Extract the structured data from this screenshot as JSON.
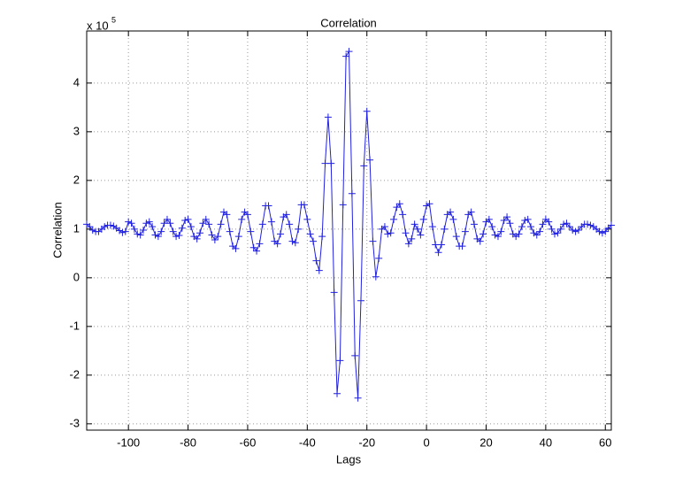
{
  "chart_data": {
    "type": "line",
    "title": "Correlation",
    "x_label": "Lags",
    "y_label": "Correlation",
    "y_multiplier": "x 10",
    "y_multiplier_exponent": "5",
    "xlim": [
      -114,
      62
    ],
    "ylim": [
      -3.13,
      5.07
    ],
    "xticks": [
      -100,
      -80,
      -60,
      -40,
      -20,
      0,
      20,
      40,
      60
    ],
    "yticks": [
      -3,
      -2,
      -1,
      0,
      1,
      2,
      3,
      4
    ],
    "grid": true,
    "x": [
      -114,
      -113,
      -112,
      -111,
      -110,
      -109,
      -108,
      -107,
      -106,
      -105,
      -104,
      -103,
      -102,
      -101,
      -100,
      -99,
      -98,
      -97,
      -96,
      -95,
      -94,
      -93,
      -92,
      -91,
      -90,
      -89,
      -88,
      -87,
      -86,
      -85,
      -84,
      -83,
      -82,
      -81,
      -80,
      -79,
      -78,
      -77,
      -76,
      -75,
      -74,
      -73,
      -72,
      -71,
      -70,
      -69,
      -68,
      -67,
      -66,
      -65,
      -64,
      -63,
      -62,
      -61,
      -60,
      -59,
      -58,
      -57,
      -56,
      -55,
      -54,
      -53,
      -52,
      -51,
      -50,
      -49,
      -48,
      -47,
      -46,
      -45,
      -44,
      -43,
      -42,
      -41,
      -40,
      -39,
      -38,
      -37,
      -36,
      -35,
      -34,
      -33,
      -32,
      -31,
      -30,
      -29,
      -28,
      -27,
      -26,
      -25,
      -24,
      -23,
      -22,
      -21,
      -20,
      -19,
      -18,
      -17,
      -16,
      -15,
      -14,
      -13,
      -12,
      -11,
      -10,
      -9,
      -8,
      -7,
      -6,
      -5,
      -4,
      -3,
      -2,
      -1,
      0,
      1,
      2,
      3,
      4,
      5,
      6,
      7,
      8,
      9,
      10,
      11,
      12,
      13,
      14,
      15,
      16,
      17,
      18,
      19,
      20,
      21,
      22,
      23,
      24,
      25,
      26,
      27,
      28,
      29,
      30,
      31,
      32,
      33,
      34,
      35,
      36,
      37,
      38,
      39,
      40,
      41,
      42,
      43,
      44,
      45,
      46,
      47,
      48,
      49,
      50,
      51,
      52,
      53,
      54,
      55,
      56,
      57,
      58,
      59,
      60,
      61,
      62
    ],
    "series": [
      {
        "name": "Correlation",
        "color": "#2020e0",
        "values": [
          1.1,
          1.05,
          0.98,
          0.95,
          0.95,
          1.0,
          1.05,
          1.08,
          1.08,
          1.06,
          1.02,
          0.97,
          0.93,
          0.95,
          1.15,
          1.12,
          1.0,
          0.9,
          0.88,
          0.98,
          1.12,
          1.15,
          1.05,
          0.88,
          0.85,
          0.95,
          1.12,
          1.2,
          1.12,
          0.95,
          0.85,
          0.87,
          1.02,
          1.18,
          1.2,
          1.05,
          0.85,
          0.8,
          0.92,
          1.12,
          1.2,
          1.1,
          0.88,
          0.78,
          0.85,
          1.1,
          1.35,
          1.3,
          0.95,
          0.65,
          0.6,
          0.85,
          1.2,
          1.35,
          1.3,
          0.95,
          0.62,
          0.55,
          0.7,
          1.1,
          1.48,
          1.48,
          1.15,
          0.75,
          0.7,
          0.9,
          1.25,
          1.3,
          1.1,
          0.75,
          0.72,
          1.0,
          1.5,
          1.5,
          1.2,
          0.9,
          0.75,
          0.35,
          0.15,
          0.85,
          2.35,
          3.3,
          2.35,
          -0.3,
          -2.38,
          -1.7,
          1.5,
          4.55,
          4.65,
          1.73,
          -1.6,
          -2.47,
          -0.47,
          2.3,
          3.42,
          2.42,
          0.75,
          0.02,
          0.4,
          1.0,
          1.05,
          0.9,
          0.92,
          1.2,
          1.45,
          1.52,
          1.3,
          0.92,
          0.7,
          0.8,
          1.1,
          1.0,
          0.88,
          1.2,
          1.48,
          1.52,
          1.05,
          0.68,
          0.52,
          0.68,
          1.0,
          1.3,
          1.35,
          1.2,
          0.85,
          0.65,
          0.65,
          0.95,
          1.3,
          1.35,
          1.1,
          0.8,
          0.75,
          0.9,
          1.15,
          1.2,
          1.05,
          0.88,
          0.85,
          0.95,
          1.18,
          1.25,
          1.12,
          0.9,
          0.85,
          0.9,
          1.05,
          1.18,
          1.2,
          1.05,
          0.92,
          0.88,
          0.95,
          1.1,
          1.2,
          1.15,
          1.0,
          0.9,
          0.92,
          1.0,
          1.1,
          1.12,
          1.05,
          0.98,
          0.95,
          0.98,
          1.05,
          1.1,
          1.1,
          1.08,
          1.05,
          1.0,
          0.95,
          0.92,
          0.95,
          1.02,
          1.08
        ]
      }
    ]
  }
}
